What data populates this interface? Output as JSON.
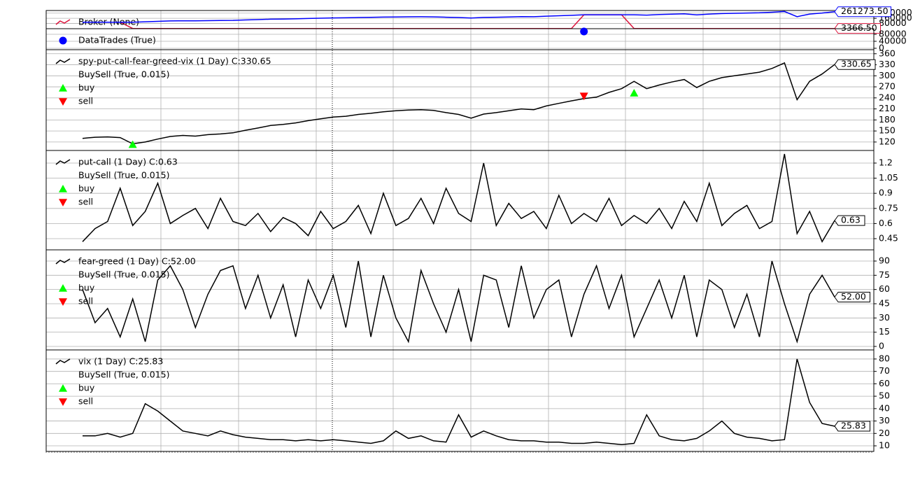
{
  "chart_data": [
    {
      "type": "line",
      "grid": true,
      "ylim": [
        0,
        280000
      ],
      "yticks": [
        80000,
        160000,
        240000
      ],
      "series": [
        {
          "name": "Broker (None)",
          "color": "#dc143c",
          "style": "line",
          "last_label": "3366.50",
          "values": [
            100000,
            100000,
            100000,
            100000,
            3000,
            3000,
            3000,
            3000,
            3000,
            3000,
            3000,
            3000,
            3000,
            3000,
            3000,
            3000,
            3000,
            3000,
            3000,
            3000,
            3000,
            3000,
            3000,
            3000,
            3000,
            3000,
            3000,
            3000,
            3000,
            3000,
            3000,
            3000,
            3000,
            3000,
            3000,
            3000,
            3000,
            3000,
            3000,
            3000,
            214000,
            214000,
            214000,
            214000,
            3366.5,
            3366.5,
            3366.5,
            3366.5,
            3366.5,
            3366.5,
            3366.5,
            3366.5,
            3366.5,
            3366.5,
            3366.5,
            3366.5,
            3366.5,
            3366.5,
            3366.5,
            3366.5,
            3366.5
          ]
        },
        {
          "color": "#0000ff",
          "style": "line",
          "last_label": "261273.50",
          "values": [
            100000,
            100000,
            100000,
            100000,
            100000,
            106195,
            113274,
            119469,
            122124,
            120354,
            123894,
            125664,
            128319,
            134513,
            139823,
            146018,
            148673,
            152212,
            157522,
            161947,
            166372,
            168142,
            172566,
            175221,
            178761,
            181416,
            183186,
            184071,
            182301,
            176991,
            172566,
            163717,
            173451,
            176991,
            181416,
            185841,
            184071,
            192920,
            199115,
            205310,
            214000,
            214000,
            214000,
            214000,
            214000,
            209403,
            217305,
            223627,
            229158,
            211774,
            225207,
            233109,
            237060,
            241011,
            244962,
            252864,
            264717,
            185697,
            225207,
            241011,
            261273.5
          ]
        }
      ]
    },
    {
      "type": "line",
      "grid": true,
      "ylim": [
        -8000,
        112000
      ],
      "yticks": [
        0,
        40000,
        80000
      ],
      "series": [
        {
          "name": "DataTrades (True)",
          "color": "#0000ff",
          "style": "marker",
          "marker": "o",
          "values": [
            null,
            null,
            null,
            null,
            null,
            null,
            null,
            null,
            null,
            null,
            null,
            null,
            null,
            null,
            null,
            null,
            null,
            null,
            null,
            null,
            null,
            null,
            null,
            null,
            null,
            null,
            null,
            null,
            null,
            null,
            null,
            null,
            null,
            null,
            null,
            null,
            null,
            null,
            null,
            null,
            96000,
            null,
            null,
            null,
            null,
            null,
            null,
            null,
            null,
            null,
            null,
            null,
            null,
            null,
            null,
            null,
            null,
            null,
            null,
            null,
            null
          ]
        }
      ]
    },
    {
      "type": "line",
      "grid": true,
      "ylim": [
        97,
        371
      ],
      "yticks": [
        120,
        150,
        180,
        210,
        240,
        270,
        300,
        330,
        360
      ],
      "legend_title": "BuySell (True, 0.015)",
      "series": [
        {
          "name": "spy-put-call-fear-greed-vix (1 Day) C:330.65",
          "color": "#000000",
          "style": "line",
          "last_label": "330.65",
          "values": [
            130,
            133,
            134,
            132,
            115,
            120,
            128,
            135,
            138,
            136,
            140,
            142,
            145,
            152,
            158,
            165,
            168,
            172,
            178,
            183,
            188,
            190,
            195,
            198,
            202,
            205,
            207,
            208,
            206,
            200,
            195,
            185,
            196,
            200,
            205,
            210,
            208,
            218,
            225,
            232,
            238,
            242,
            255,
            265,
            285,
            265,
            275,
            283,
            290,
            268,
            285,
            295,
            300,
            305,
            310,
            320,
            335,
            235,
            285,
            305,
            330.65
          ]
        },
        {
          "name": "buy",
          "color": "#00ff00",
          "style": "marker",
          "marker": "^",
          "values": [
            null,
            null,
            null,
            null,
            113,
            null,
            null,
            null,
            null,
            null,
            null,
            null,
            null,
            null,
            null,
            null,
            null,
            null,
            null,
            null,
            null,
            null,
            null,
            null,
            null,
            null,
            null,
            null,
            null,
            null,
            null,
            null,
            null,
            null,
            null,
            null,
            null,
            null,
            null,
            null,
            null,
            null,
            null,
            null,
            253,
            null,
            null,
            null,
            null,
            null,
            null,
            null,
            null,
            null,
            null,
            null,
            null,
            null,
            null,
            null,
            null
          ]
        },
        {
          "name": "sell",
          "color": "#ff0000",
          "style": "marker",
          "marker": "v",
          "values": [
            null,
            null,
            null,
            null,
            null,
            null,
            null,
            null,
            null,
            null,
            null,
            null,
            null,
            null,
            null,
            null,
            null,
            null,
            null,
            null,
            null,
            null,
            null,
            null,
            null,
            null,
            null,
            null,
            null,
            null,
            null,
            null,
            null,
            null,
            null,
            null,
            null,
            null,
            null,
            null,
            245,
            null,
            null,
            null,
            null,
            null,
            null,
            null,
            null,
            null,
            null,
            null,
            null,
            null,
            null,
            null,
            null,
            null,
            null,
            null,
            null
          ]
        }
      ]
    },
    {
      "type": "line",
      "grid": true,
      "ylim": [
        0.339,
        1.325
      ],
      "yticks": [
        0.45,
        0.6,
        0.75,
        0.9,
        1.05,
        1.2
      ],
      "legend_title": "BuySell (True, 0.015)",
      "series": [
        {
          "name": "put-call (1 Day) C:0.63",
          "color": "#000000",
          "style": "line",
          "last_label": "0.63",
          "values": [
            0.42,
            0.55,
            0.62,
            0.95,
            0.58,
            0.72,
            1.0,
            0.6,
            0.68,
            0.75,
            0.55,
            0.85,
            0.62,
            0.58,
            0.7,
            0.52,
            0.66,
            0.6,
            0.48,
            0.72,
            0.55,
            0.62,
            0.78,
            0.5,
            0.9,
            0.58,
            0.65,
            0.85,
            0.6,
            0.95,
            0.7,
            0.62,
            1.2,
            0.58,
            0.8,
            0.65,
            0.72,
            0.55,
            0.88,
            0.6,
            0.7,
            0.62,
            0.85,
            0.58,
            0.68,
            0.6,
            0.75,
            0.55,
            0.82,
            0.62,
            1.0,
            0.58,
            0.7,
            0.78,
            0.55,
            0.62,
            1.29,
            0.5,
            0.72,
            0.42,
            0.63
          ]
        },
        {
          "name": "buy",
          "color": "#00ff00",
          "style": "marker",
          "marker": "^",
          "values": []
        },
        {
          "name": "sell",
          "color": "#ff0000",
          "style": "marker",
          "marker": "v",
          "values": []
        }
      ]
    },
    {
      "type": "line",
      "grid": true,
      "ylim": [
        -3.7,
        101.8
      ],
      "yticks": [
        0,
        15,
        30,
        45,
        60,
        75,
        90
      ],
      "legend_title": "BuySell (True, 0.015)",
      "series": [
        {
          "name": "fear-greed (1 Day) C:52.00",
          "color": "#000000",
          "style": "line",
          "last_label": "52.00",
          "values": [
            60,
            25,
            40,
            10,
            50,
            5,
            70,
            85,
            60,
            20,
            55,
            80,
            85,
            40,
            75,
            30,
            65,
            10,
            70,
            40,
            75,
            20,
            90,
            10,
            75,
            30,
            5,
            80,
            45,
            15,
            60,
            5,
            75,
            70,
            20,
            85,
            30,
            60,
            70,
            10,
            55,
            85,
            40,
            75,
            10,
            40,
            70,
            30,
            75,
            10,
            70,
            60,
            20,
            55,
            10,
            90,
            45,
            5,
            55,
            75,
            52
          ]
        },
        {
          "name": "buy",
          "color": "#00ff00",
          "style": "marker",
          "marker": "^",
          "values": []
        },
        {
          "name": "sell",
          "color": "#ff0000",
          "style": "marker",
          "marker": "v",
          "values": []
        }
      ]
    },
    {
      "type": "line",
      "grid": true,
      "ylim": [
        5.5,
        87.3
      ],
      "yticks": [
        10,
        20,
        30,
        40,
        50,
        60,
        70,
        80
      ],
      "legend_title": "BuySell (True, 0.015)",
      "series": [
        {
          "name": "vix (1 Day) C:25.83",
          "color": "#000000",
          "style": "line",
          "last_label": "25.83",
          "values": [
            18,
            18,
            20,
            17,
            20,
            44,
            38,
            30,
            22,
            20,
            18,
            22,
            19,
            17,
            16,
            15,
            15,
            14,
            15,
            14,
            15,
            14,
            13,
            12,
            14,
            22,
            16,
            18,
            14,
            13,
            35,
            17,
            22,
            18,
            15,
            14,
            14,
            13,
            13,
            12,
            12,
            13,
            12,
            11,
            12,
            35,
            18,
            15,
            14,
            16,
            22,
            30,
            20,
            17,
            16,
            14,
            15,
            80,
            45,
            28,
            25.83
          ]
        },
        {
          "name": "buy",
          "color": "#00ff00",
          "style": "marker",
          "marker": "^",
          "values": []
        },
        {
          "name": "sell",
          "color": "#ff0000",
          "style": "marker",
          "marker": "v",
          "values": []
        }
      ]
    }
  ]
}
